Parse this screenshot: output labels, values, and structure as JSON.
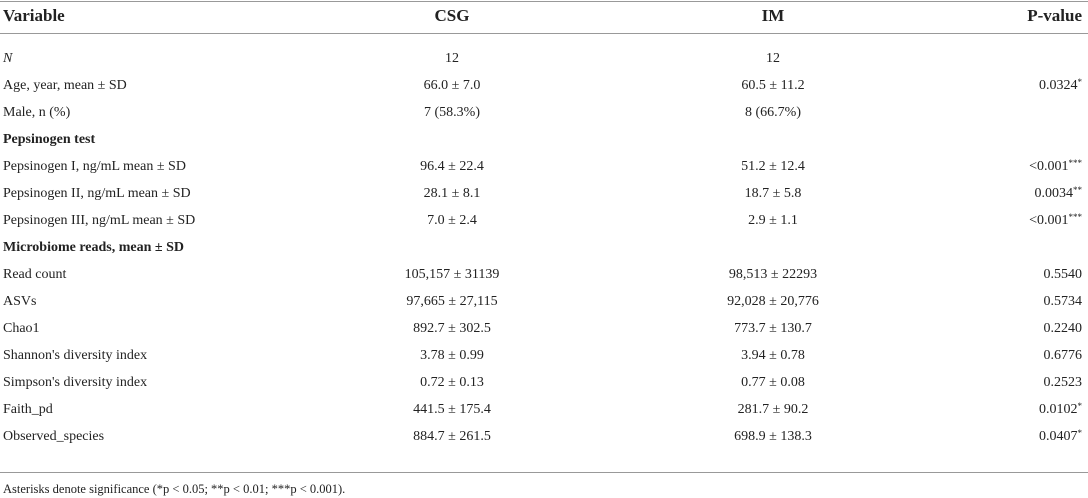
{
  "table": {
    "header": [
      "Variable",
      "CSG",
      "IM",
      "P-value"
    ],
    "rows": [
      [
        "N",
        "12",
        "12"
      ],
      [
        "Age, year, mean ± SD",
        "66.0 ± 7.0",
        "60.5 ± 11.2",
        "0.0324*"
      ],
      [
        "Male, n (%)",
        "7 (58.3%)",
        "8 (66.7%)"
      ],
      [
        "Pepsinogen test"
      ],
      [
        "Pepsinogen I, ng/mL mean ± SD",
        "96.4 ± 22.4",
        "51.2 ± 12.4",
        "<0.001***"
      ],
      [
        "Pepsinogen II, ng/mL mean ± SD",
        "28.1 ± 8.1",
        "18.7 ± 5.8",
        "0.0034**"
      ],
      [
        "Pepsinogen III, ng/mL mean ± SD",
        "7.0 ± 2.4",
        "2.9 ± 1.1",
        "<0.001***"
      ],
      [
        "Microbiome reads, mean ± SD"
      ],
      [
        "Read count",
        "105,157 ± 31139",
        "98,513 ± 22293",
        "0.5540"
      ],
      [
        "ASVs",
        "97,665 ± 27,115",
        "92,028 ± 20,776",
        "0.5734"
      ],
      [
        "Chao1",
        "892.7 ± 302.5",
        "773.7 ± 130.7",
        "0.2240"
      ],
      [
        "Shannon's diversity index",
        "3.78 ± 0.99",
        "3.94 ± 0.78",
        "0.6776"
      ],
      [
        "Simpson's diversity index",
        "0.72 ± 0.13",
        "0.77 ± 0.08",
        "0.2523"
      ],
      [
        "Faith_pd",
        "441.5 ± 175.4",
        "281.7 ± 90.2",
        "0.0102*"
      ],
      [
        "Observed_species",
        "884.7 ± 261.5",
        "698.9 ± 138.3",
        "0.0407*"
      ]
    ],
    "footnote": "Asterisks denote significance (*p < 0.05; **p < 0.01; ***p < 0.001)."
  }
}
